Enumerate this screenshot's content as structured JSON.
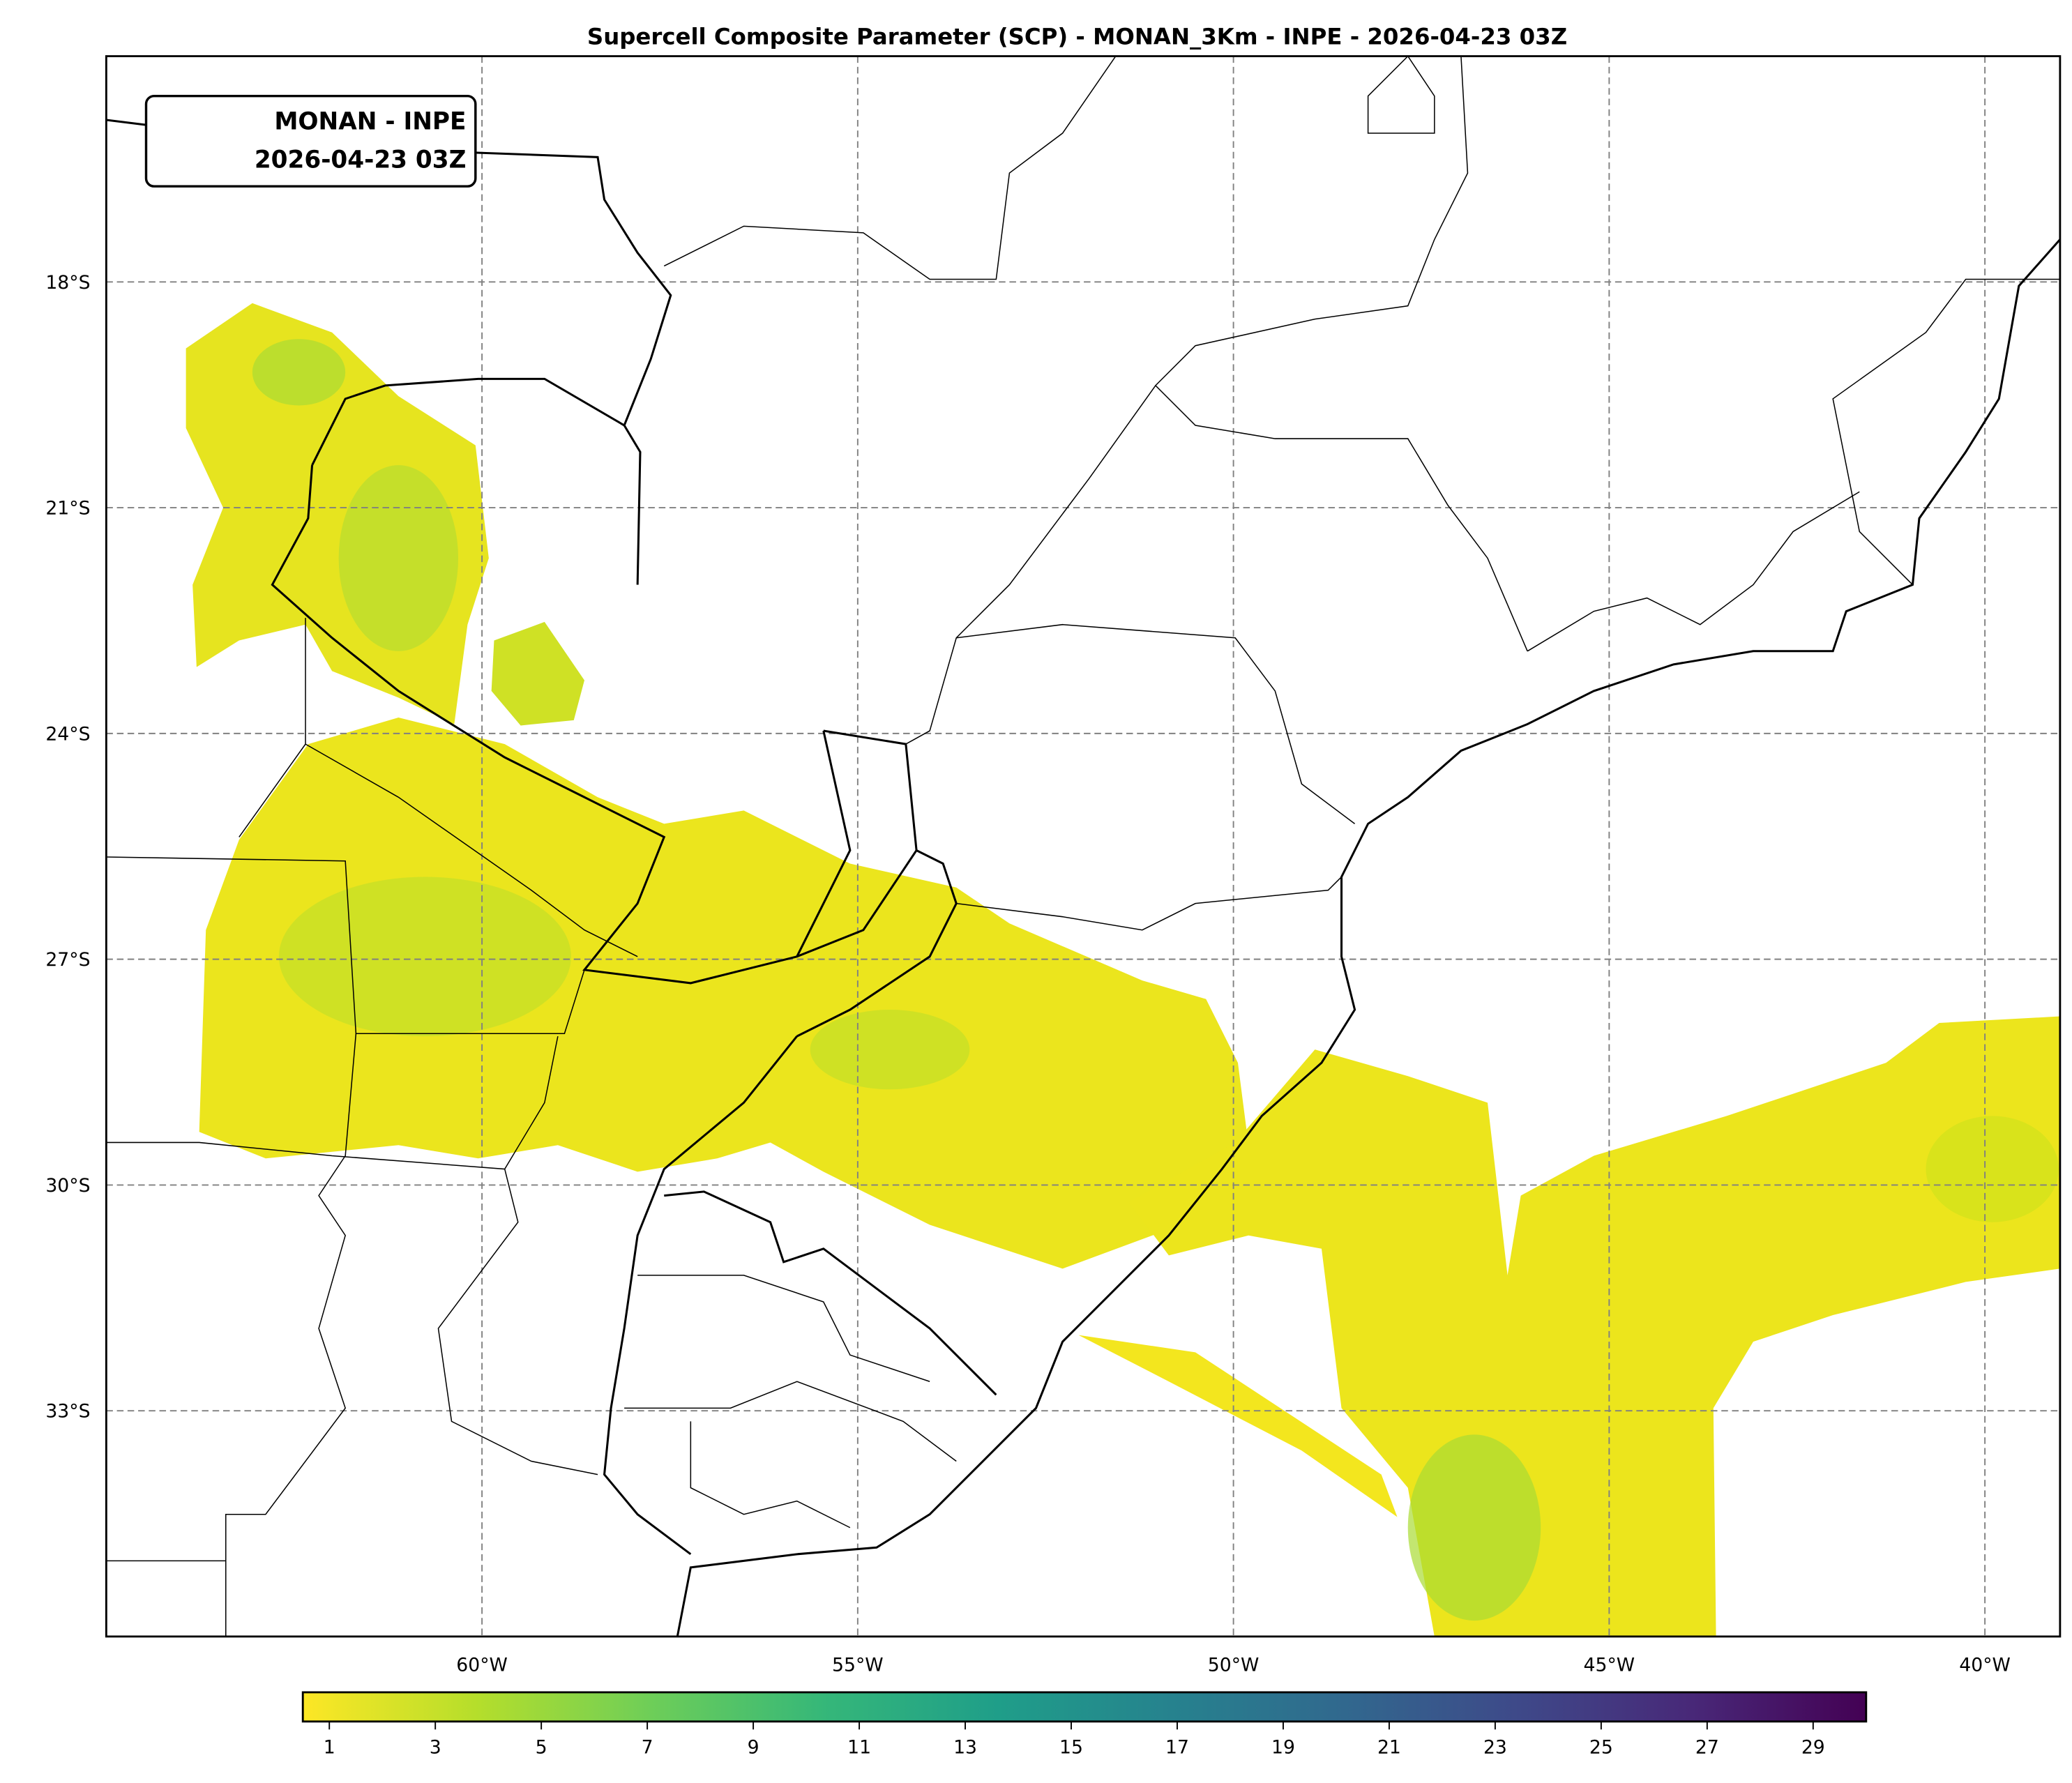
{
  "title": "Supercell Composite Parameter (SCP) - MONAN_3Km - INPE - 2026-04-23 03Z",
  "info_box": {
    "line1": "MONAN - INPE",
    "line2": "2026-04-23 03Z"
  },
  "map": {
    "projection": "PlateCarree",
    "extent_lon": [
      -65,
      -39
    ],
    "extent_lat": [
      -36,
      -15
    ],
    "gridlines": "dashed gray",
    "lon_ticks": [
      {
        "value": -60,
        "label": "60°W"
      },
      {
        "value": -55,
        "label": "55°W"
      },
      {
        "value": -50,
        "label": "50°W"
      },
      {
        "value": -45,
        "label": "45°W"
      },
      {
        "value": -40,
        "label": "40°W"
      }
    ],
    "lat_ticks": [
      {
        "value": -18,
        "label": "18°S"
      },
      {
        "value": -21,
        "label": "21°S"
      },
      {
        "value": -24,
        "label": "24°S"
      },
      {
        "value": -27,
        "label": "27°S"
      },
      {
        "value": -30,
        "label": "30°S"
      },
      {
        "value": -33,
        "label": "33°S"
      }
    ],
    "field_colors": {
      "low": "#fde725",
      "mid": "#d2e21b",
      "high": "#a5db36"
    }
  },
  "colorbar": {
    "colormap": "viridis_r",
    "range": [
      0.5,
      30
    ],
    "ticks": [
      "1",
      "3",
      "5",
      "7",
      "9",
      "11",
      "13",
      "15",
      "17",
      "19",
      "21",
      "23",
      "25",
      "27",
      "29"
    ],
    "colors": [
      "#fde725",
      "#b5de2b",
      "#6ece58",
      "#35b779",
      "#1f9e89",
      "#26828e",
      "#31688e",
      "#3e4989",
      "#482878",
      "#440154"
    ]
  }
}
